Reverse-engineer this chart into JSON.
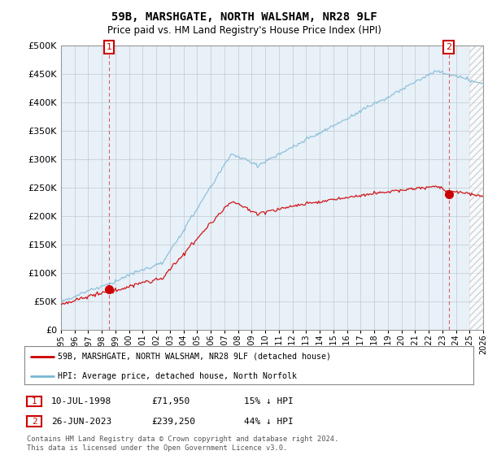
{
  "title": "59B, MARSHGATE, NORTH WALSHAM, NR28 9LF",
  "subtitle": "Price paid vs. HM Land Registry's House Price Index (HPI)",
  "hpi_label": "HPI: Average price, detached house, North Norfolk",
  "property_label": "59B, MARSHGATE, NORTH WALSHAM, NR28 9LF (detached house)",
  "hpi_color": "#7ab8d4",
  "property_color": "#cc0000",
  "annotation1_date": "10-JUL-1998",
  "annotation1_price": "£71,950",
  "annotation1_hpi": "15% ↓ HPI",
  "annotation2_date": "26-JUN-2023",
  "annotation2_price": "£239,250",
  "annotation2_hpi": "44% ↓ HPI",
  "ylim": [
    0,
    500000
  ],
  "yticks": [
    0,
    50000,
    100000,
    150000,
    200000,
    250000,
    300000,
    350000,
    400000,
    450000,
    500000
  ],
  "footer": "Contains HM Land Registry data © Crown copyright and database right 2024.\nThis data is licensed under the Open Government Licence v3.0.",
  "point1_x": 1998.53,
  "point1_y": 71950,
  "point2_x": 2023.48,
  "point2_y": 239250,
  "xlim_start": 1995,
  "xlim_end": 2026,
  "plot_bg_color": "#e8f0f8",
  "fig_bg_color": "#ffffff",
  "grid_color": "#c0c8d0",
  "hatch_start": 2025.0
}
